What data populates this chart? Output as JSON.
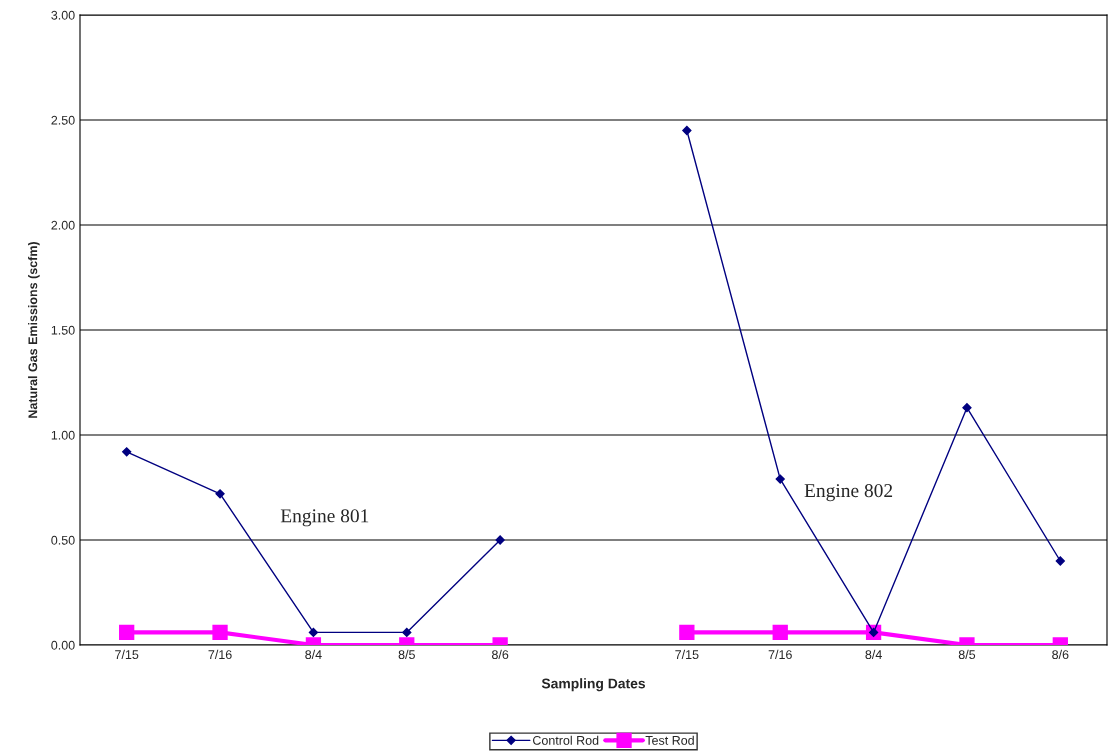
{
  "chart_data": {
    "type": "line",
    "xlabel": "Sampling Dates",
    "ylabel": "Natural Gas Emissions (scfm)",
    "categories": [
      "7/15",
      "7/16",
      "8/4",
      "8/5",
      "8/6",
      null,
      "7/15",
      "7/16",
      "8/4",
      "8/5",
      "8/6"
    ],
    "series": [
      {
        "name": "Control Rod",
        "color": "#000080",
        "marker": "diamond",
        "values": [
          0.92,
          0.72,
          0.06,
          0.06,
          0.5,
          null,
          2.45,
          0.79,
          0.06,
          1.13,
          0.4
        ]
      },
      {
        "name": "Test Rod",
        "color": "#ff00ff",
        "marker": "square",
        "values": [
          0.06,
          0.06,
          0.0,
          0.0,
          0.0,
          null,
          0.06,
          0.06,
          0.06,
          0.0,
          0.0
        ]
      }
    ],
    "ylim": [
      0,
      3
    ],
    "yticks": [
      {
        "value": 0,
        "label": "0.00"
      },
      {
        "value": 0.5,
        "label": "0.50"
      },
      {
        "value": 1,
        "label": "1.00"
      },
      {
        "value": 1.5,
        "label": "1.50"
      },
      {
        "value": 2,
        "label": "2.00"
      },
      {
        "value": 2.5,
        "label": "2.50"
      },
      {
        "value": 3,
        "label": "3.00"
      }
    ],
    "grid": "y",
    "legend": "bottom",
    "annotations": [
      "Engine 801",
      "Engine 802"
    ]
  }
}
